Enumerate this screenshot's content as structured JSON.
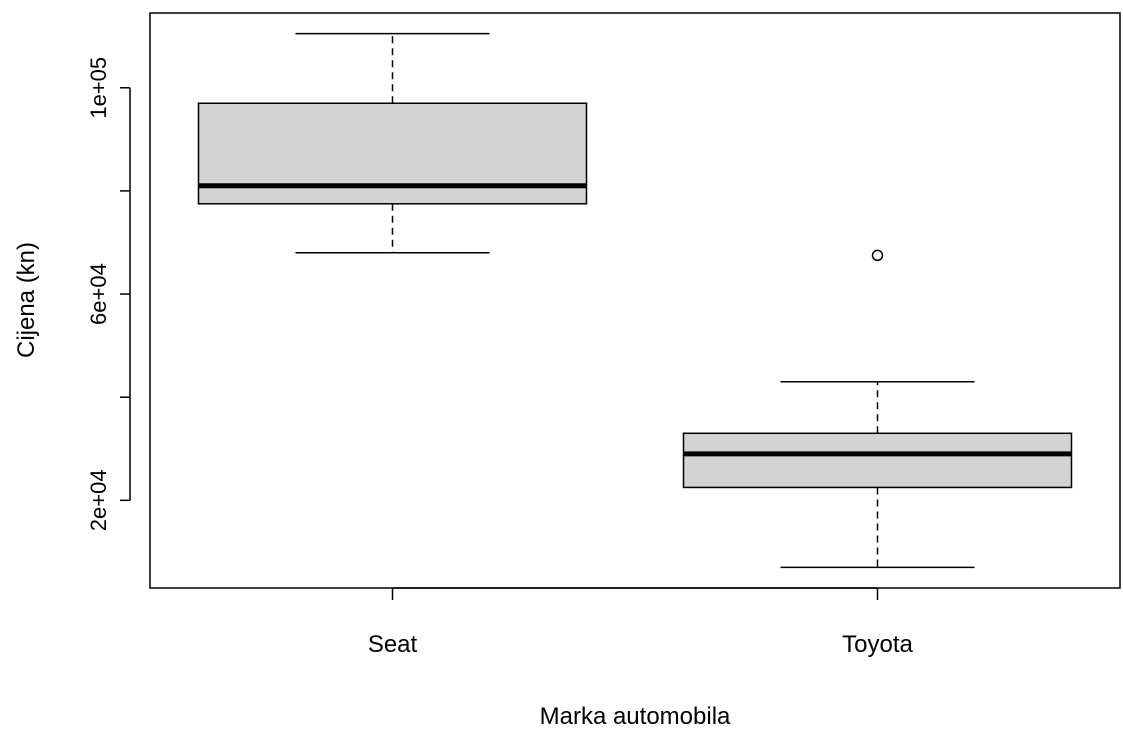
{
  "chart_data": {
    "type": "boxplot",
    "title": "",
    "xlabel": "Marka automobila",
    "ylabel": "Cijena (kn)",
    "ylim": [
      3000,
      114500
    ],
    "yticks": [
      20000,
      40000,
      60000,
      80000,
      100000
    ],
    "ytick_labels": [
      "2e+04",
      "",
      "6e+04",
      "",
      "1e+05"
    ],
    "categories": [
      "Seat",
      "Toyota"
    ],
    "boxes": [
      {
        "category": "Seat",
        "whisker_low": 68000,
        "q1": 77500,
        "median": 81000,
        "q3": 97000,
        "whisker_high": 110500,
        "outliers": []
      },
      {
        "category": "Toyota",
        "whisker_low": 7000,
        "q1": 22500,
        "median": 29000,
        "q3": 33000,
        "whisker_high": 43000,
        "outliers": [
          67500
        ]
      }
    ],
    "box_fill": "#d3d3d3",
    "grid": false
  }
}
